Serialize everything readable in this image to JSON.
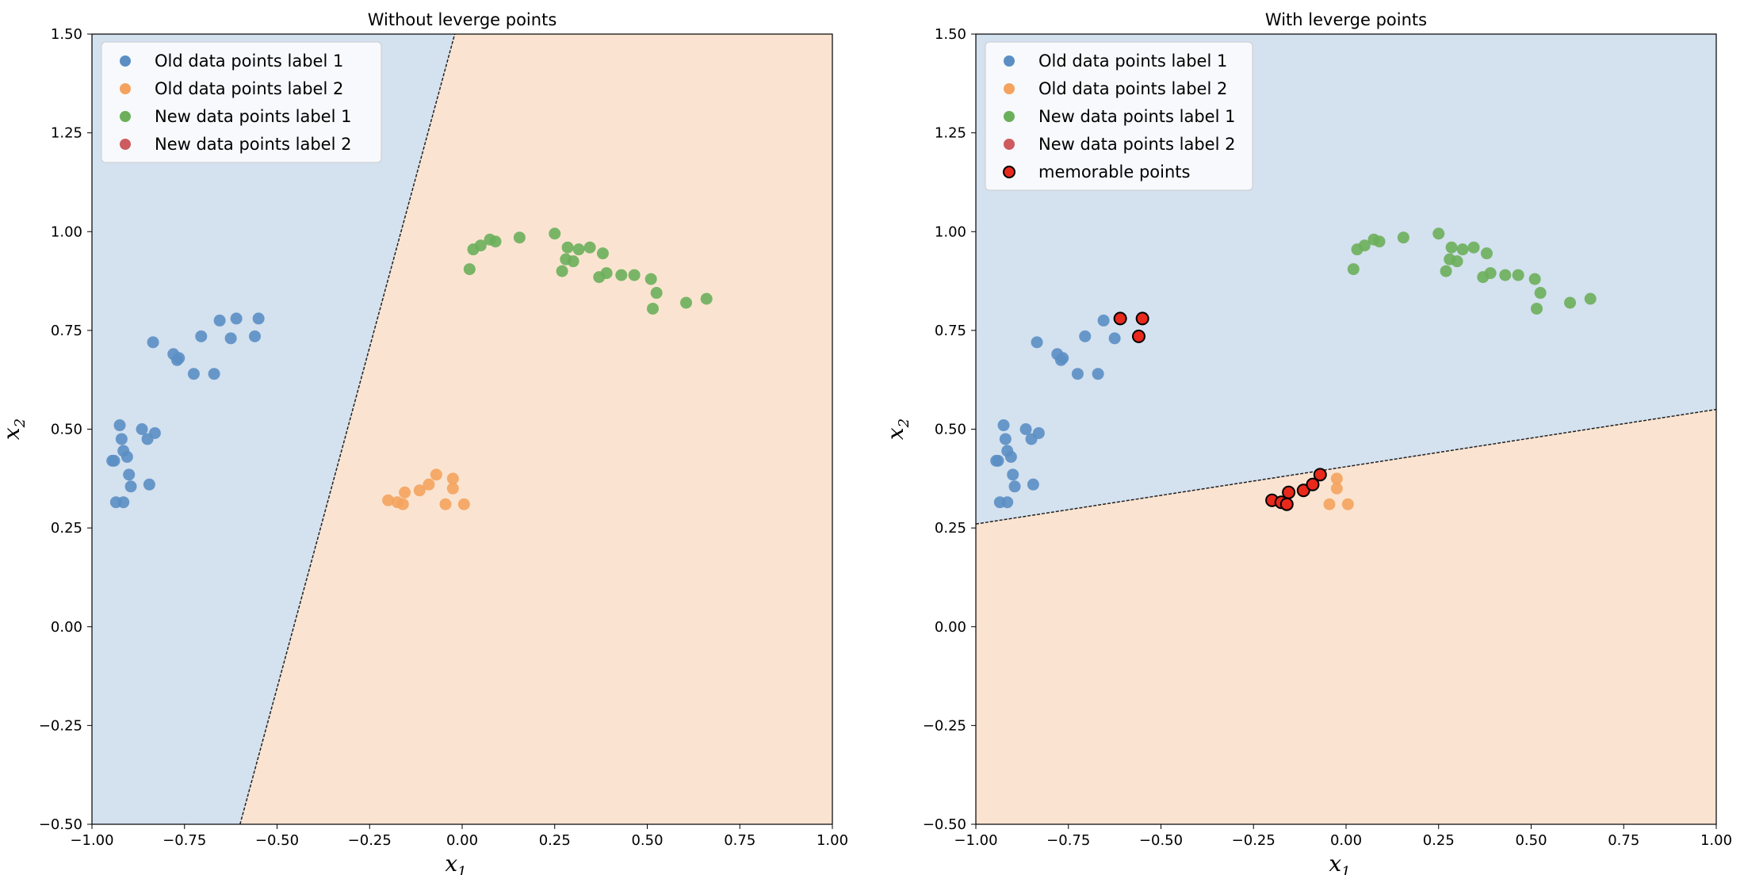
{
  "chart_data": [
    {
      "type": "scatter",
      "title": "Without leverge points",
      "xlabel": {
        "base": "x",
        "sub": "1"
      },
      "ylabel": {
        "base": "x",
        "sub": "2"
      },
      "xlim": [
        -1.0,
        1.0
      ],
      "ylim": [
        -0.5,
        1.5
      ],
      "xticks": [
        -1.0,
        -0.75,
        -0.5,
        -0.25,
        0.0,
        0.25,
        0.5,
        0.75,
        1.0
      ],
      "xtick_labels": [
        "−1.00",
        "−0.75",
        "−0.50",
        "−0.25",
        "0.00",
        "0.25",
        "0.50",
        "0.75",
        "1.00"
      ],
      "yticks": [
        -0.5,
        -0.25,
        0.0,
        0.25,
        0.5,
        0.75,
        1.0,
        1.25,
        1.5
      ],
      "ytick_labels": [
        "−0.50",
        "−0.25",
        "0.00",
        "0.25",
        "0.50",
        "0.75",
        "1.00",
        "1.25",
        "1.50"
      ],
      "decision_boundary": {
        "points": [
          [
            -0.6,
            -0.5
          ],
          [
            -0.02,
            1.5
          ]
        ],
        "label1_side": "left"
      },
      "region_colors": {
        "label1": "#d4e1ef",
        "label2": "#fae4d1"
      },
      "legend_position": "upper left",
      "series": [
        {
          "name": "Old data points label 1",
          "color": "#5b8fc4",
          "points": [
            [
              -0.945,
              0.42
            ],
            [
              -0.94,
              0.42
            ],
            [
              -0.935,
              0.315
            ],
            [
              -0.925,
              0.51
            ],
            [
              -0.92,
              0.475
            ],
            [
              -0.915,
              0.445
            ],
            [
              -0.915,
              0.315
            ],
            [
              -0.905,
              0.43
            ],
            [
              -0.9,
              0.385
            ],
            [
              -0.895,
              0.355
            ],
            [
              -0.865,
              0.5
            ],
            [
              -0.85,
              0.475
            ],
            [
              -0.845,
              0.36
            ],
            [
              -0.835,
              0.72
            ],
            [
              -0.83,
              0.49
            ],
            [
              -0.78,
              0.69
            ],
            [
              -0.77,
              0.675
            ],
            [
              -0.765,
              0.68
            ],
            [
              -0.725,
              0.64
            ],
            [
              -0.705,
              0.735
            ],
            [
              -0.67,
              0.64
            ],
            [
              -0.655,
              0.775
            ],
            [
              -0.625,
              0.73
            ],
            [
              -0.61,
              0.78
            ],
            [
              -0.56,
              0.735
            ],
            [
              -0.55,
              0.78
            ]
          ]
        },
        {
          "name": "Old data points label 2",
          "color": "#f4a35e",
          "points": [
            [
              -0.2,
              0.32
            ],
            [
              -0.175,
              0.315
            ],
            [
              -0.16,
              0.31
            ],
            [
              -0.155,
              0.34
            ],
            [
              -0.115,
              0.345
            ],
            [
              -0.09,
              0.36
            ],
            [
              -0.07,
              0.385
            ],
            [
              -0.045,
              0.31
            ],
            [
              -0.025,
              0.375
            ],
            [
              -0.025,
              0.35
            ],
            [
              0.005,
              0.31
            ]
          ]
        },
        {
          "name": "New data points label 1",
          "color": "#6caf5b",
          "points": [
            [
              0.02,
              0.905
            ],
            [
              0.03,
              0.955
            ],
            [
              0.05,
              0.965
            ],
            [
              0.075,
              0.98
            ],
            [
              0.09,
              0.975
            ],
            [
              0.155,
              0.985
            ],
            [
              0.25,
              0.995
            ],
            [
              0.27,
              0.9
            ],
            [
              0.28,
              0.93
            ],
            [
              0.285,
              0.96
            ],
            [
              0.3,
              0.925
            ],
            [
              0.315,
              0.955
            ],
            [
              0.345,
              0.96
            ],
            [
              0.37,
              0.885
            ],
            [
              0.38,
              0.945
            ],
            [
              0.39,
              0.895
            ],
            [
              0.43,
              0.89
            ],
            [
              0.465,
              0.89
            ],
            [
              0.51,
              0.88
            ],
            [
              0.515,
              0.805
            ],
            [
              0.525,
              0.845
            ],
            [
              0.605,
              0.82
            ],
            [
              0.66,
              0.83
            ]
          ]
        },
        {
          "name": "New data points label 2",
          "color": "#cd5b5f",
          "points": []
        }
      ]
    },
    {
      "type": "scatter",
      "title": "With leverge points",
      "xlabel": {
        "base": "x",
        "sub": "1"
      },
      "ylabel": {
        "base": "x",
        "sub": "2"
      },
      "xlim": [
        -1.0,
        1.0
      ],
      "ylim": [
        -0.5,
        1.5
      ],
      "xticks": [
        -1.0,
        -0.75,
        -0.5,
        -0.25,
        0.0,
        0.25,
        0.5,
        0.75,
        1.0
      ],
      "xtick_labels": [
        "−1.00",
        "−0.75",
        "−0.50",
        "−0.25",
        "0.00",
        "0.25",
        "0.50",
        "0.75",
        "1.00"
      ],
      "yticks": [
        -0.5,
        -0.25,
        0.0,
        0.25,
        0.5,
        0.75,
        1.0,
        1.25,
        1.5
      ],
      "ytick_labels": [
        "−0.50",
        "−0.25",
        "0.00",
        "0.25",
        "0.50",
        "0.75",
        "1.00",
        "1.25",
        "1.50"
      ],
      "decision_boundary": {
        "points": [
          [
            -1.0,
            0.26
          ],
          [
            1.0,
            0.55
          ]
        ],
        "label1_side": "above"
      },
      "region_colors": {
        "label1": "#d4e1ef",
        "label2": "#fae4d1"
      },
      "legend_position": "upper left",
      "series": [
        {
          "name": "Old data points label 1",
          "color": "#5b8fc4",
          "points": [
            [
              -0.945,
              0.42
            ],
            [
              -0.94,
              0.42
            ],
            [
              -0.935,
              0.315
            ],
            [
              -0.925,
              0.51
            ],
            [
              -0.92,
              0.475
            ],
            [
              -0.915,
              0.445
            ],
            [
              -0.915,
              0.315
            ],
            [
              -0.905,
              0.43
            ],
            [
              -0.9,
              0.385
            ],
            [
              -0.895,
              0.355
            ],
            [
              -0.865,
              0.5
            ],
            [
              -0.85,
              0.475
            ],
            [
              -0.845,
              0.36
            ],
            [
              -0.835,
              0.72
            ],
            [
              -0.83,
              0.49
            ],
            [
              -0.78,
              0.69
            ],
            [
              -0.77,
              0.675
            ],
            [
              -0.765,
              0.68
            ],
            [
              -0.725,
              0.64
            ],
            [
              -0.705,
              0.735
            ],
            [
              -0.67,
              0.64
            ],
            [
              -0.655,
              0.775
            ],
            [
              -0.625,
              0.73
            ],
            [
              -0.61,
              0.78
            ],
            [
              -0.56,
              0.735
            ],
            [
              -0.55,
              0.78
            ]
          ]
        },
        {
          "name": "Old data points label 2",
          "color": "#f4a35e",
          "points": [
            [
              -0.2,
              0.32
            ],
            [
              -0.175,
              0.315
            ],
            [
              -0.16,
              0.31
            ],
            [
              -0.155,
              0.34
            ],
            [
              -0.115,
              0.345
            ],
            [
              -0.09,
              0.36
            ],
            [
              -0.07,
              0.385
            ],
            [
              -0.045,
              0.31
            ],
            [
              -0.025,
              0.375
            ],
            [
              -0.025,
              0.35
            ],
            [
              0.005,
              0.31
            ]
          ]
        },
        {
          "name": "New data points label 1",
          "color": "#6caf5b",
          "points": [
            [
              0.02,
              0.905
            ],
            [
              0.03,
              0.955
            ],
            [
              0.05,
              0.965
            ],
            [
              0.075,
              0.98
            ],
            [
              0.09,
              0.975
            ],
            [
              0.155,
              0.985
            ],
            [
              0.25,
              0.995
            ],
            [
              0.27,
              0.9
            ],
            [
              0.28,
              0.93
            ],
            [
              0.285,
              0.96
            ],
            [
              0.3,
              0.925
            ],
            [
              0.315,
              0.955
            ],
            [
              0.345,
              0.96
            ],
            [
              0.37,
              0.885
            ],
            [
              0.38,
              0.945
            ],
            [
              0.39,
              0.895
            ],
            [
              0.43,
              0.89
            ],
            [
              0.465,
              0.89
            ],
            [
              0.51,
              0.88
            ],
            [
              0.515,
              0.805
            ],
            [
              0.525,
              0.845
            ],
            [
              0.605,
              0.82
            ],
            [
              0.66,
              0.83
            ]
          ]
        },
        {
          "name": "New data points label 2",
          "color": "#cd5b5f",
          "points": []
        },
        {
          "name": "memorable points",
          "color": "#e8291c",
          "edge_color": "#000000",
          "points": [
            [
              -0.61,
              0.78
            ],
            [
              -0.56,
              0.735
            ],
            [
              -0.55,
              0.78
            ],
            [
              -0.2,
              0.32
            ],
            [
              -0.175,
              0.315
            ],
            [
              -0.16,
              0.31
            ],
            [
              -0.155,
              0.34
            ],
            [
              -0.115,
              0.345
            ],
            [
              -0.09,
              0.36
            ],
            [
              -0.07,
              0.385
            ]
          ]
        }
      ]
    }
  ]
}
